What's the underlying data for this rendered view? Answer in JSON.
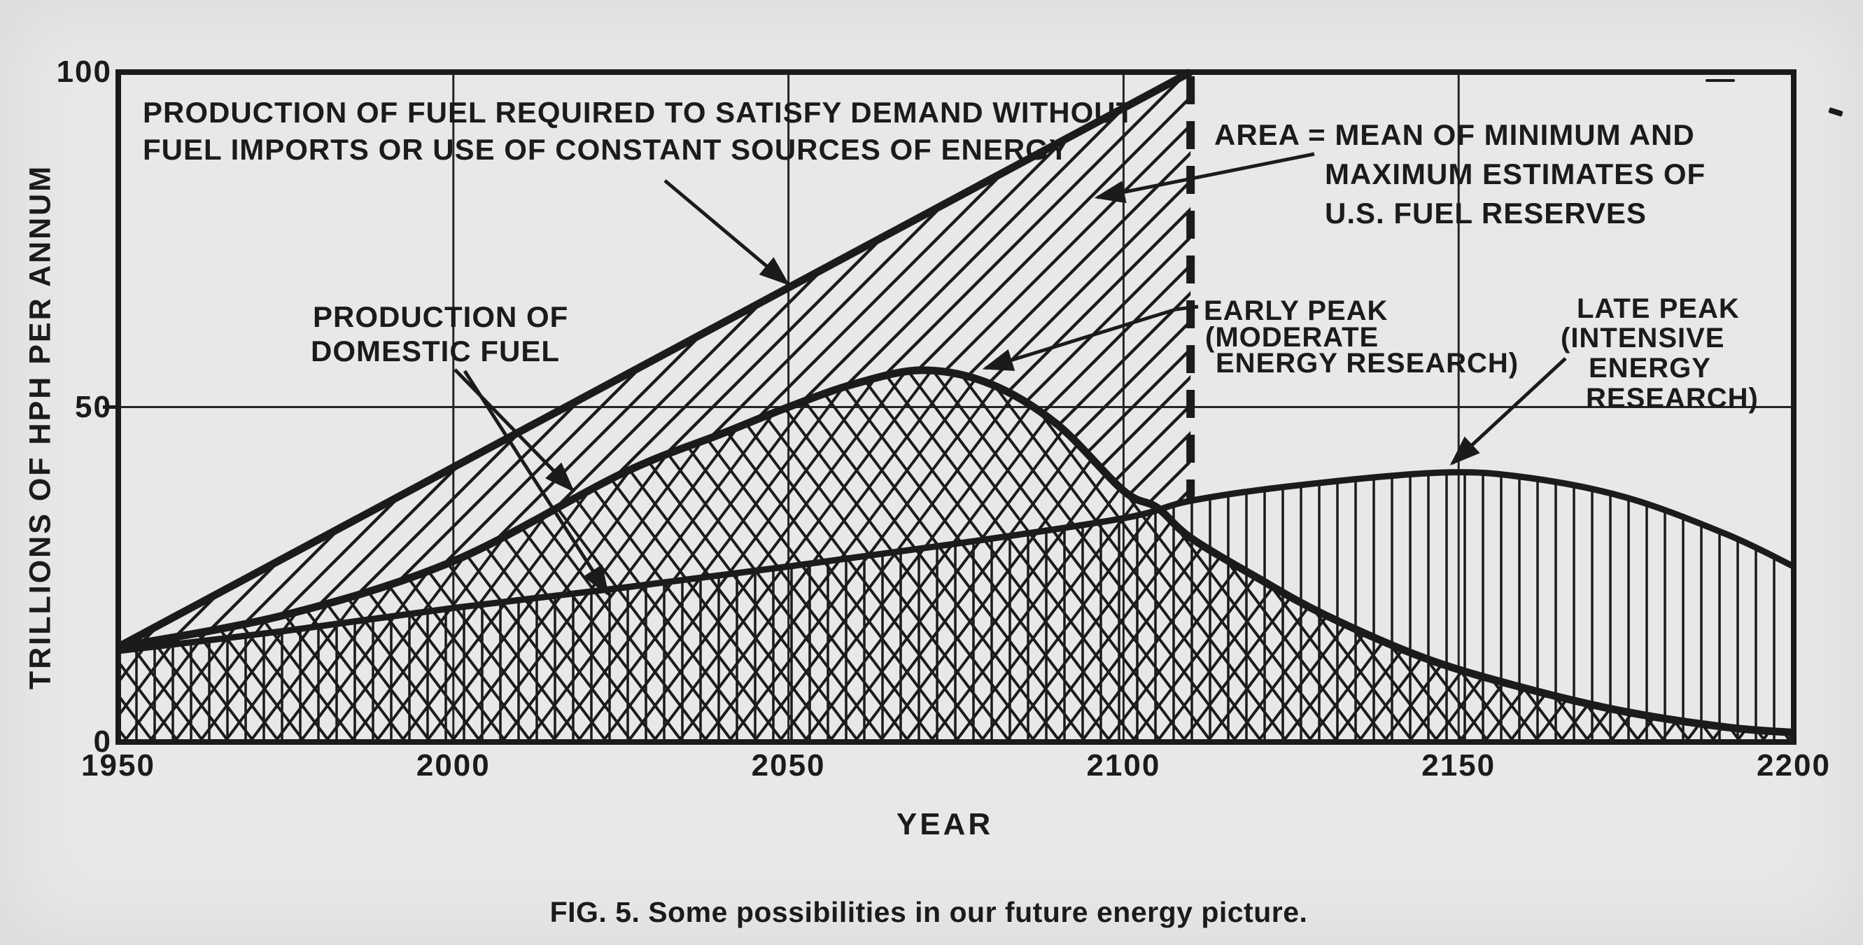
{
  "page": {
    "paper_color": "#e9e8e6",
    "ink_color": "#1b1b1b"
  },
  "figure": {
    "caption": "FIG. 5. Some possibilities in our future energy picture.",
    "x_axis_label": "YEAR",
    "y_axis_label": "TRILLIONS OF HPH PER ANNUM",
    "x_tick_labels": [
      "1950",
      "2000",
      "2050",
      "2100",
      "2150",
      "2200"
    ],
    "y_tick_labels": [
      "100",
      "50",
      "0"
    ],
    "annotations": {
      "demand": {
        "line1": "PRODUCTION OF FUEL REQUIRED TO SATISFY DEMAND WITHOUT",
        "line2": "FUEL IMPORTS OR USE OF CONSTANT SOURCES OF ENERGY"
      },
      "area": {
        "line1": "AREA = MEAN OF MINIMUM AND",
        "line2": "MAXIMUM ESTIMATES OF",
        "line3": "U.S. FUEL RESERVES"
      },
      "domestic": {
        "line1": "PRODUCTION OF",
        "line2": "DOMESTIC FUEL"
      },
      "early_peak": {
        "line1": "EARLY PEAK",
        "line2": "(MODERATE",
        "line3": "ENERGY RESEARCH)"
      },
      "late_peak": {
        "line1": "LATE PEAK",
        "line2": "(INTENSIVE",
        "line3": "ENERGY",
        "line4": "RESEARCH)"
      }
    }
  },
  "chart_data": {
    "type": "area",
    "title": "FIG. 5. Some possibilities in our future energy picture.",
    "xlabel": "YEAR",
    "ylabel": "TRILLIONS OF HPH PER ANNUM",
    "xlim": [
      1950,
      2200
    ],
    "ylim": [
      0,
      100
    ],
    "x_ticks": [
      1950,
      2000,
      2050,
      2100,
      2150,
      2200
    ],
    "y_ticks": [
      100,
      50,
      0
    ],
    "gridlines_x": [
      2000,
      2050,
      2100,
      2150
    ],
    "gridlines_y": [
      50
    ],
    "grid": "partial",
    "legend": "none (annotated with leader arrows)",
    "dashed_vertical_line_year": 2110,
    "diagonal_area_meaning": "Area between demand line and domestic fuel production = mean of minimum and maximum estimates of U.S. fuel reserves",
    "series": [
      {
        "id": "demand",
        "name": "Production of fuel required to satisfy demand without fuel imports or use of constant sources of energy",
        "style": "thick straight line, diagonal hatched area below down to domestic production, ends at dashed line year 2110",
        "hatch": "diagonal",
        "points": [
          [
            1950,
            14.2
          ],
          [
            2000,
            41
          ],
          [
            2050,
            68
          ],
          [
            2100,
            95
          ],
          [
            2110,
            100
          ]
        ]
      },
      {
        "id": "early",
        "name": "Production of domestic fuel — early peak (moderate energy research)",
        "style": "thick curve, cross-hatched area below",
        "hatch": "cross",
        "peak": {
          "year": 2070,
          "value": 55.5
        },
        "points": [
          [
            1950,
            14.2
          ],
          [
            1975,
            19
          ],
          [
            2000,
            27
          ],
          [
            2025,
            40
          ],
          [
            2040,
            46
          ],
          [
            2050,
            50
          ],
          [
            2060,
            53.5
          ],
          [
            2070,
            55.5
          ],
          [
            2080,
            53.5
          ],
          [
            2090,
            47.5
          ],
          [
            2100,
            37.5
          ],
          [
            2105,
            35
          ],
          [
            2110,
            30.5
          ],
          [
            2120,
            24.5
          ],
          [
            2130,
            19
          ],
          [
            2145,
            12.5
          ],
          [
            2160,
            8
          ],
          [
            2175,
            4.5
          ],
          [
            2190,
            2.2
          ],
          [
            2200,
            1.4
          ]
        ]
      },
      {
        "id": "late",
        "name": "Production of domestic fuel — late peak (intensive energy research)",
        "style": "thick curve, vertical hatched area below",
        "hatch": "vertical",
        "peak": {
          "year": 2147,
          "value": 40
        },
        "points": [
          [
            1950,
            13.6
          ],
          [
            1975,
            16.6
          ],
          [
            2000,
            20
          ],
          [
            2025,
            23
          ],
          [
            2050,
            26.2
          ],
          [
            2075,
            29.6
          ],
          [
            2100,
            33.4
          ],
          [
            2110,
            36
          ],
          [
            2125,
            38.2
          ],
          [
            2147,
            40.2
          ],
          [
            2160,
            39.5
          ],
          [
            2175,
            36.5
          ],
          [
            2190,
            31
          ],
          [
            2200,
            26.2
          ]
        ]
      }
    ]
  }
}
